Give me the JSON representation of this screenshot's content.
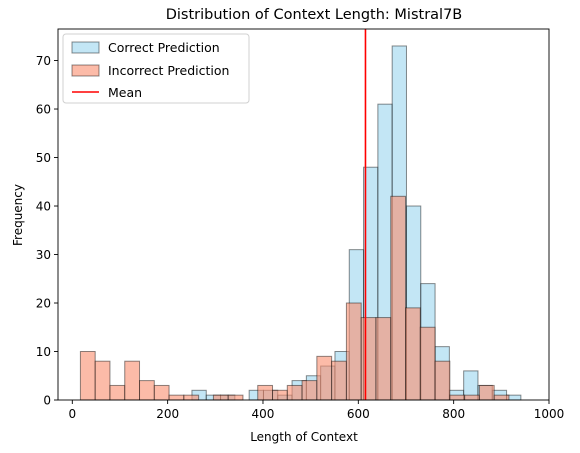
{
  "chart_data": {
    "type": "bar",
    "title": "Distribution of Context Length: Mistral7B",
    "xlabel": "Length of Context",
    "ylabel": "Frequency",
    "xlim": [
      -30,
      1000
    ],
    "ylim": [
      0,
      76.5
    ],
    "xticks": [
      0,
      200,
      400,
      600,
      800,
      1000
    ],
    "yticks": [
      0,
      10,
      20,
      30,
      40,
      50,
      60,
      70
    ],
    "grid": false,
    "legend_position": "top-left",
    "mean": 615,
    "series": [
      {
        "name": "Correct Prediction",
        "color": "#87ceeb",
        "bins": [
          {
            "x0": 251,
            "x1": 281,
            "value": 2
          },
          {
            "x0": 281,
            "x1": 311,
            "value": 1
          },
          {
            "x0": 311,
            "x1": 341,
            "value": 1
          },
          {
            "x0": 371,
            "x1": 401,
            "value": 2
          },
          {
            "x0": 401,
            "x1": 431,
            "value": 2
          },
          {
            "x0": 431,
            "x1": 461,
            "value": 1
          },
          {
            "x0": 461,
            "x1": 491,
            "value": 4
          },
          {
            "x0": 491,
            "x1": 521,
            "value": 5
          },
          {
            "x0": 521,
            "x1": 551,
            "value": 7
          },
          {
            "x0": 551,
            "x1": 581,
            "value": 10
          },
          {
            "x0": 581,
            "x1": 611,
            "value": 31
          },
          {
            "x0": 611,
            "x1": 641,
            "value": 48
          },
          {
            "x0": 641,
            "x1": 671,
            "value": 61
          },
          {
            "x0": 671,
            "x1": 701,
            "value": 73
          },
          {
            "x0": 701,
            "x1": 731,
            "value": 40
          },
          {
            "x0": 731,
            "x1": 761,
            "value": 24
          },
          {
            "x0": 761,
            "x1": 791,
            "value": 11
          },
          {
            "x0": 791,
            "x1": 821,
            "value": 2
          },
          {
            "x0": 821,
            "x1": 851,
            "value": 6
          },
          {
            "x0": 851,
            "x1": 881,
            "value": 3
          },
          {
            "x0": 881,
            "x1": 911,
            "value": 2
          },
          {
            "x0": 911,
            "x1": 941,
            "value": 1
          }
        ]
      },
      {
        "name": "Incorrect Prediction",
        "color": "#fa8e6e",
        "bins": [
          {
            "x0": 17,
            "x1": 48,
            "value": 10
          },
          {
            "x0": 48,
            "x1": 79,
            "value": 8
          },
          {
            "x0": 79,
            "x1": 110,
            "value": 3
          },
          {
            "x0": 110,
            "x1": 141,
            "value": 8
          },
          {
            "x0": 141,
            "x1": 172,
            "value": 4
          },
          {
            "x0": 172,
            "x1": 203,
            "value": 3
          },
          {
            "x0": 203,
            "x1": 234,
            "value": 1
          },
          {
            "x0": 234,
            "x1": 265,
            "value": 1
          },
          {
            "x0": 296,
            "x1": 327,
            "value": 1
          },
          {
            "x0": 327,
            "x1": 358,
            "value": 1
          },
          {
            "x0": 389,
            "x1": 420,
            "value": 3
          },
          {
            "x0": 420,
            "x1": 451,
            "value": 2
          },
          {
            "x0": 451,
            "x1": 482,
            "value": 3
          },
          {
            "x0": 482,
            "x1": 513,
            "value": 4
          },
          {
            "x0": 513,
            "x1": 544,
            "value": 9
          },
          {
            "x0": 544,
            "x1": 575,
            "value": 8
          },
          {
            "x0": 575,
            "x1": 606,
            "value": 20
          },
          {
            "x0": 606,
            "x1": 637,
            "value": 17
          },
          {
            "x0": 637,
            "x1": 668,
            "value": 17
          },
          {
            "x0": 668,
            "x1": 699,
            "value": 42
          },
          {
            "x0": 699,
            "x1": 730,
            "value": 19
          },
          {
            "x0": 730,
            "x1": 761,
            "value": 15
          },
          {
            "x0": 761,
            "x1": 792,
            "value": 8
          },
          {
            "x0": 792,
            "x1": 823,
            "value": 1
          },
          {
            "x0": 823,
            "x1": 854,
            "value": 1
          },
          {
            "x0": 854,
            "x1": 885,
            "value": 3
          },
          {
            "x0": 885,
            "x1": 916,
            "value": 1
          }
        ]
      }
    ],
    "mean_line": {
      "name": "Mean",
      "color": "#ff0000"
    }
  }
}
